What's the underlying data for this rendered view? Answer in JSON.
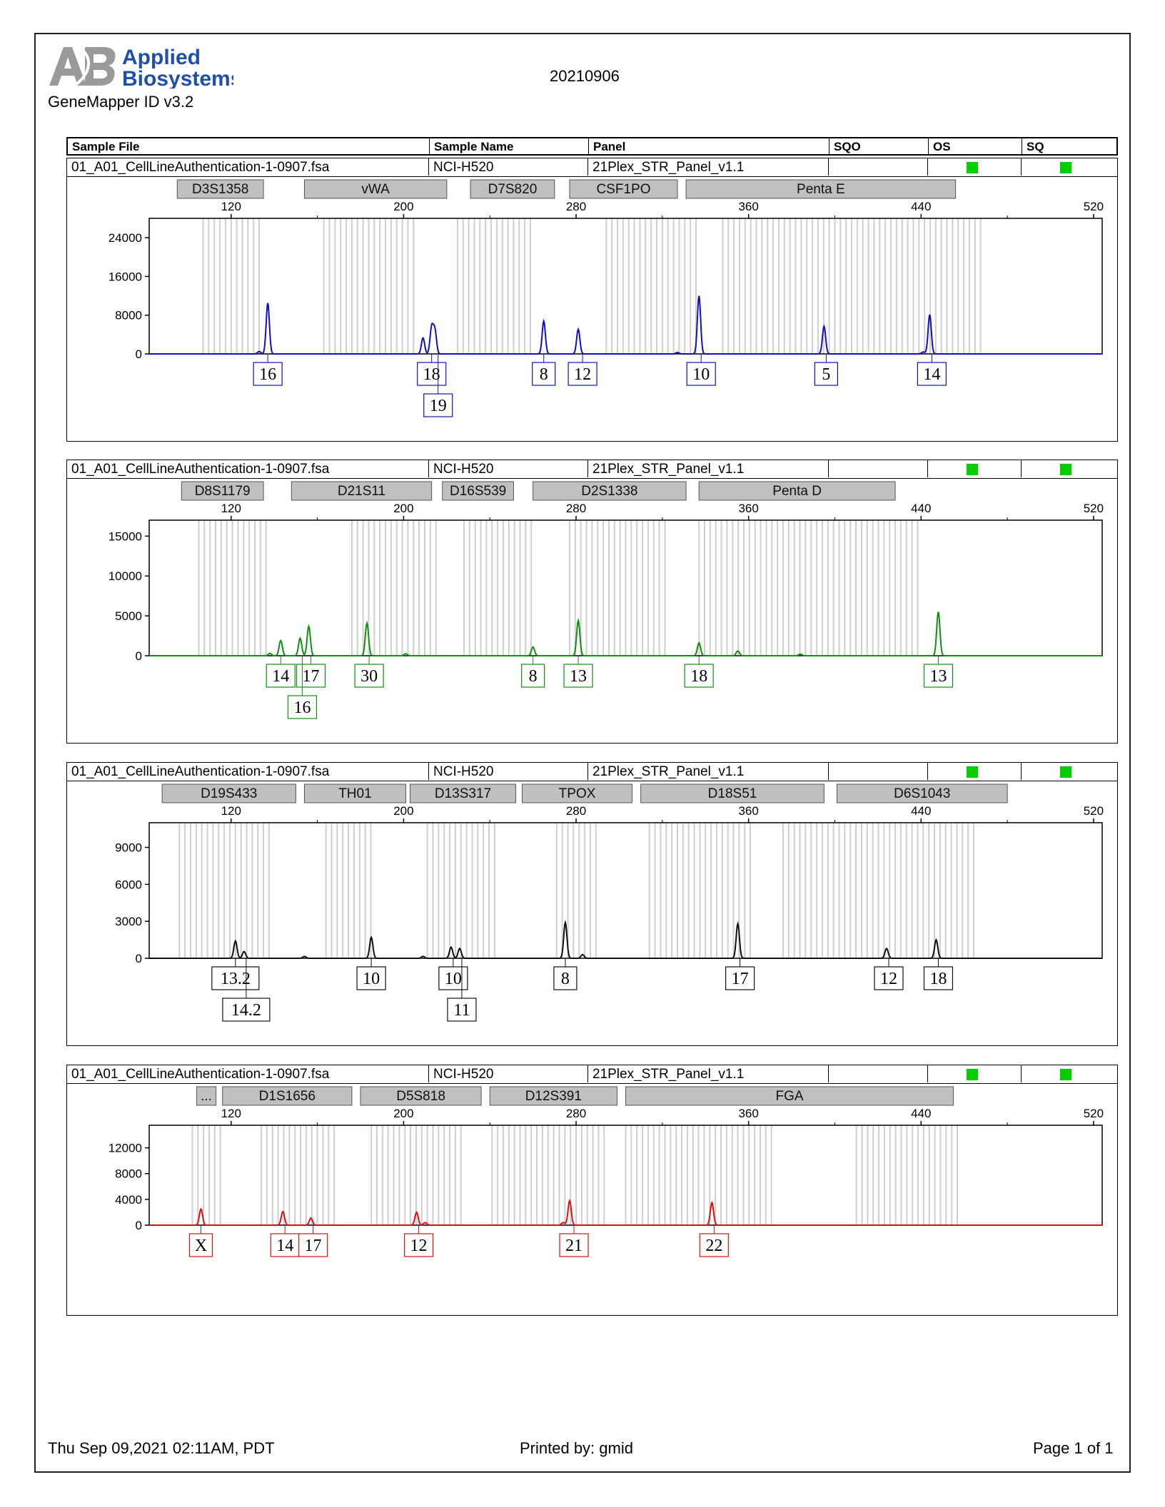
{
  "header": {
    "brand_line1": "Applied",
    "brand_line2": "Biosystems",
    "product": "GeneMapper ID v3.2",
    "run_date": "20210906"
  },
  "columns": [
    "Sample File",
    "Sample Name",
    "Panel",
    "SQO",
    "OS",
    "SQ"
  ],
  "sample": {
    "file": "01_A01_CellLineAuthentication-1-0907.fsa",
    "name": "NCI-H520",
    "panel": "21Plex_STR_Panel_v1.1"
  },
  "colors": {
    "flag": "#00d000",
    "marker_box": "#c0c0c0",
    "bin_line": "#cfcfcf"
  },
  "footer": {
    "date": "Thu Sep 09,2021 02:11AM, PDT",
    "printed": "Printed by: gmid",
    "page": "Page 1 of 1"
  },
  "chart_data": [
    {
      "type": "line",
      "color": "#1010c8",
      "xlim": [
        82,
        524
      ],
      "ylim": [
        0,
        28000
      ],
      "xticks": [
        120,
        200,
        280,
        360,
        440,
        520
      ],
      "yticks": [
        0,
        8000,
        16000,
        24000
      ],
      "markers": [
        {
          "name": "D3S1358",
          "start": 95,
          "end": 135
        },
        {
          "name": "vWA",
          "start": 154,
          "end": 220
        },
        {
          "name": "D7S820",
          "start": 231,
          "end": 270
        },
        {
          "name": "CSF1PO",
          "start": 277,
          "end": 327
        },
        {
          "name": "Penta E",
          "start": 331,
          "end": 456
        }
      ],
      "bin_ranges": [
        [
          107,
          134
        ],
        [
          163,
          206
        ],
        [
          225,
          260
        ],
        [
          294,
          338
        ],
        [
          348,
          470
        ]
      ],
      "peaks": [
        {
          "x": 137,
          "h": 10500,
          "label": "16"
        },
        {
          "x": 209,
          "h": 3300,
          "label": ""
        },
        {
          "x": 213,
          "h": 5400,
          "label": "18"
        },
        {
          "x": 214.5,
          "h": 4800,
          "label": "19"
        },
        {
          "x": 265,
          "h": 6800,
          "label": "8"
        },
        {
          "x": 281,
          "h": 5100,
          "label": "12"
        },
        {
          "x": 337,
          "h": 12000,
          "label": "10"
        },
        {
          "x": 395,
          "h": 5700,
          "label": "5"
        },
        {
          "x": 444,
          "h": 8100,
          "label": "14"
        },
        {
          "x": 327,
          "h": 300,
          "label": ""
        },
        {
          "x": 133,
          "h": 500,
          "label": ""
        },
        {
          "x": 441,
          "h": 400,
          "label": ""
        }
      ],
      "peak_labels": [
        {
          "label": "16",
          "x": 137,
          "row": 0
        },
        {
          "label": "18",
          "x": 213,
          "row": 0
        },
        {
          "label": "19",
          "x": 216,
          "row": 1
        },
        {
          "label": "8",
          "x": 265,
          "row": 0
        },
        {
          "label": "12",
          "x": 283,
          "row": 0
        },
        {
          "label": "10",
          "x": 338,
          "row": 0
        },
        {
          "label": "5",
          "x": 396,
          "row": 0
        },
        {
          "label": "14",
          "x": 445,
          "row": 0
        }
      ]
    },
    {
      "type": "line",
      "color": "#109010",
      "xlim": [
        82,
        524
      ],
      "ylim": [
        0,
        17000
      ],
      "xticks": [
        120,
        200,
        280,
        360,
        440,
        520
      ],
      "yticks": [
        0,
        5000,
        10000,
        15000
      ],
      "markers": [
        {
          "name": "D8S1179",
          "start": 97,
          "end": 135
        },
        {
          "name": "D21S11",
          "start": 148,
          "end": 213
        },
        {
          "name": "D16S539",
          "start": 218,
          "end": 251
        },
        {
          "name": "D2S1338",
          "start": 260,
          "end": 331
        },
        {
          "name": "Penta D",
          "start": 337,
          "end": 428
        }
      ],
      "bin_ranges": [
        [
          105,
          137
        ],
        [
          176,
          217
        ],
        [
          228,
          261
        ],
        [
          277,
          322
        ],
        [
          337,
          439
        ]
      ],
      "peaks": [
        {
          "x": 143,
          "h": 1900,
          "label": "14"
        },
        {
          "x": 152,
          "h": 2200,
          "label": "16"
        },
        {
          "x": 156,
          "h": 3700,
          "label": "17"
        },
        {
          "x": 183,
          "h": 4100,
          "label": "30"
        },
        {
          "x": 260,
          "h": 1100,
          "label": "8"
        },
        {
          "x": 281,
          "h": 4400,
          "label": "13"
        },
        {
          "x": 337,
          "h": 1600,
          "label": "18"
        },
        {
          "x": 355,
          "h": 600,
          "label": ""
        },
        {
          "x": 448,
          "h": 5500,
          "label": "13"
        },
        {
          "x": 201,
          "h": 250,
          "label": ""
        },
        {
          "x": 384,
          "h": 200,
          "label": ""
        },
        {
          "x": 138,
          "h": 300,
          "label": ""
        }
      ],
      "peak_labels": [
        {
          "label": "14",
          "x": 143,
          "row": 0
        },
        {
          "label": "17",
          "x": 157,
          "row": 0
        },
        {
          "label": "16",
          "x": 153,
          "row": 1
        },
        {
          "label": "30",
          "x": 184,
          "row": 0
        },
        {
          "label": "8",
          "x": 260,
          "row": 0
        },
        {
          "label": "13",
          "x": 281,
          "row": 0
        },
        {
          "label": "18",
          "x": 337,
          "row": 0
        },
        {
          "label": "13",
          "x": 448,
          "row": 0
        }
      ]
    },
    {
      "type": "line",
      "color": "#101010",
      "xlim": [
        82,
        524
      ],
      "ylim": [
        0,
        11000
      ],
      "xticks": [
        120,
        200,
        280,
        360,
        440,
        520
      ],
      "yticks": [
        0,
        3000,
        6000,
        9000
      ],
      "markers": [
        {
          "name": "D19S433",
          "start": 88,
          "end": 150
        },
        {
          "name": "TH01",
          "start": 154,
          "end": 201
        },
        {
          "name": "D13S317",
          "start": 203,
          "end": 252
        },
        {
          "name": "TPOX",
          "start": 255,
          "end": 306
        },
        {
          "name": "D18S51",
          "start": 310,
          "end": 395
        },
        {
          "name": "D6S1043",
          "start": 401,
          "end": 480
        }
      ],
      "bin_ranges": [
        [
          96,
          140
        ],
        [
          164,
          186
        ],
        [
          211,
          244
        ],
        [
          271,
          290
        ],
        [
          314,
          362
        ],
        [
          376,
          466
        ]
      ],
      "peaks": [
        {
          "x": 122,
          "h": 1400,
          "label": "13.2"
        },
        {
          "x": 126,
          "h": 550,
          "label": "14.2"
        },
        {
          "x": 185,
          "h": 1700,
          "label": "10"
        },
        {
          "x": 222,
          "h": 900,
          "label": "10"
        },
        {
          "x": 226,
          "h": 800,
          "label": "11"
        },
        {
          "x": 275,
          "h": 2900,
          "label": "8"
        },
        {
          "x": 283,
          "h": 300,
          "label": ""
        },
        {
          "x": 355,
          "h": 2800,
          "label": "17"
        },
        {
          "x": 424,
          "h": 800,
          "label": "12"
        },
        {
          "x": 447,
          "h": 1500,
          "label": "18"
        },
        {
          "x": 154,
          "h": 150,
          "label": ""
        },
        {
          "x": 209,
          "h": 150,
          "label": ""
        }
      ],
      "peak_labels": [
        {
          "label": "13.2",
          "x": 122,
          "row": 0
        },
        {
          "label": "14.2",
          "x": 127,
          "row": 1
        },
        {
          "label": "10",
          "x": 185,
          "row": 0
        },
        {
          "label": "10",
          "x": 223,
          "row": 0
        },
        {
          "label": "11",
          "x": 227,
          "row": 1
        },
        {
          "label": "8",
          "x": 275,
          "row": 0
        },
        {
          "label": "17",
          "x": 356,
          "row": 0
        },
        {
          "label": "12",
          "x": 425,
          "row": 0
        },
        {
          "label": "18",
          "x": 448,
          "row": 0
        }
      ]
    },
    {
      "type": "line",
      "color": "#e01010",
      "xlim": [
        82,
        524
      ],
      "ylim": [
        0,
        15500
      ],
      "xticks": [
        120,
        200,
        280,
        360,
        440,
        520
      ],
      "yticks": [
        0,
        4000,
        8000,
        12000
      ],
      "markers": [
        {
          "name": "...",
          "start": 104,
          "end": 113
        },
        {
          "name": "D1S1656",
          "start": 116,
          "end": 176
        },
        {
          "name": "D5S818",
          "start": 180,
          "end": 236
        },
        {
          "name": "D12S391",
          "start": 240,
          "end": 299
        },
        {
          "name": "FGA",
          "start": 303,
          "end": 455
        }
      ],
      "bin_ranges": [
        [
          102,
          115
        ],
        [
          134,
          170
        ],
        [
          185,
          228
        ],
        [
          241,
          294
        ],
        [
          303,
          372
        ],
        [
          410,
          458
        ]
      ],
      "peaks": [
        {
          "x": 106,
          "h": 2500,
          "label": "X"
        },
        {
          "x": 144,
          "h": 2100,
          "label": "14"
        },
        {
          "x": 157,
          "h": 1100,
          "label": "17"
        },
        {
          "x": 206,
          "h": 2000,
          "label": "12"
        },
        {
          "x": 210,
          "h": 400,
          "label": ""
        },
        {
          "x": 277,
          "h": 3800,
          "label": "21"
        },
        {
          "x": 343,
          "h": 3500,
          "label": "22"
        },
        {
          "x": 274,
          "h": 400,
          "label": ""
        }
      ],
      "peak_labels": [
        {
          "label": "X",
          "x": 106,
          "row": 0
        },
        {
          "label": "14",
          "x": 145,
          "row": 0
        },
        {
          "label": "17",
          "x": 158,
          "row": 0
        },
        {
          "label": "12",
          "x": 207,
          "row": 0
        },
        {
          "label": "21",
          "x": 279,
          "row": 0
        },
        {
          "label": "22",
          "x": 344,
          "row": 0
        }
      ]
    }
  ]
}
